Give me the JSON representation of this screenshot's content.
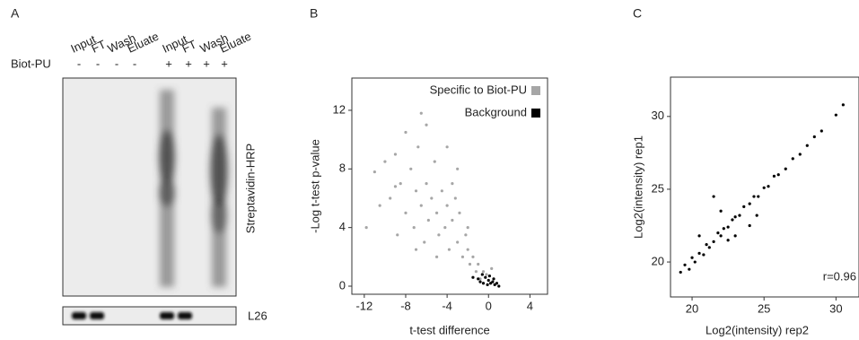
{
  "panel_a": {
    "label": "A",
    "lanes": [
      "Input",
      "FT",
      "Wash",
      "Eluate",
      "Input",
      "FT",
      "Wash",
      "Eluate"
    ],
    "row_label": "Biot-PU",
    "signs": [
      "-",
      "-",
      "-",
      "-",
      "+",
      "+",
      "+",
      "+"
    ],
    "blot_label": "Streptavidin-HRP",
    "loading_label": "L26"
  },
  "chart_data": [
    {
      "type": "scatter",
      "label": "B",
      "x_label": "t-test difference",
      "y_label": "-Log t-test p-value",
      "xlim": [
        -13.2,
        5.7
      ],
      "xticks": [
        -12,
        -8,
        -4,
        0,
        4
      ],
      "ylim": [
        -0.55,
        14.2
      ],
      "yticks": [
        0,
        4,
        8,
        12
      ],
      "legend": "top-right",
      "series": [
        {
          "name": "Specific to Biot-PU",
          "color": "#a6a6a6",
          "x": [
            -11.8,
            -11,
            -10.5,
            -10,
            -9.5,
            -9,
            -8.8,
            -8.5,
            -8,
            -8,
            -7.5,
            -7.2,
            -7,
            -6.8,
            -6.5,
            -6.2,
            -6,
            -5.8,
            -5.5,
            -5.2,
            -5,
            -4.8,
            -4.5,
            -4.2,
            -4,
            -3.8,
            -3.5,
            -3.2,
            -3,
            -2.8,
            -2.5,
            -2.2,
            -2,
            -1.8,
            -1.5,
            -1.2,
            -1,
            -0.8,
            -0.5,
            -0.2,
            0.3,
            -6,
            -4,
            -3,
            -7,
            -5,
            -2,
            -9,
            -6.5,
            -3.5
          ],
          "values": [
            4,
            7.8,
            5.5,
            8.5,
            6,
            9,
            3.5,
            7,
            10.5,
            5,
            8,
            4,
            6.5,
            9.5,
            5.5,
            3,
            7,
            4.5,
            6,
            8.5,
            5,
            3.5,
            6.5,
            4,
            5.5,
            2.5,
            4.5,
            6,
            3,
            5,
            2,
            3.5,
            2.5,
            1.5,
            2,
            1,
            1.5,
            0.5,
            1,
            0.8,
            1.2,
            11,
            9.5,
            8,
            2.5,
            2,
            4,
            6.8,
            11.8,
            7
          ]
        },
        {
          "name": "Background",
          "color": "#000000",
          "x": [
            -1.5,
            -1,
            -0.8,
            -0.5,
            -0.3,
            -0.1,
            0,
            0.2,
            0.4,
            0.6,
            0.8,
            1,
            -0.6,
            0.1,
            0.5
          ],
          "values": [
            0.6,
            0.5,
            0.3,
            0.2,
            0.6,
            0.1,
            0.4,
            0.2,
            0.3,
            0.1,
            0.2,
            0.0,
            0.8,
            0.7,
            0.5
          ]
        }
      ]
    },
    {
      "type": "scatter",
      "label": "C",
      "x_label": "Log2(intensity) rep2",
      "y_label": "Log2(intensity) rep1",
      "xlim": [
        18.5,
        31.6
      ],
      "xticks": [
        20,
        25,
        30
      ],
      "ylim": [
        17.6,
        32.7
      ],
      "yticks": [
        20,
        25,
        30
      ],
      "annotation": "r=0.96",
      "color": "#000000",
      "x": [
        19.2,
        19.5,
        19.8,
        20,
        20.2,
        20.5,
        20.8,
        21,
        21.2,
        21.5,
        21.8,
        22,
        22.2,
        22.5,
        22.8,
        23,
        23.3,
        23.6,
        24,
        24.3,
        24.6,
        25,
        25.3,
        25.7,
        26,
        26.5,
        27,
        27.5,
        28,
        28.5,
        29,
        30,
        30.5,
        21.5,
        22,
        23,
        24,
        20.5,
        22.5,
        24.5
      ],
      "values": [
        19.3,
        19.8,
        19.5,
        20.3,
        20,
        20.6,
        20.5,
        21.2,
        21,
        21.4,
        22,
        21.8,
        22.3,
        22.4,
        22.9,
        23.1,
        23.2,
        23.8,
        24,
        24.5,
        24.5,
        25.1,
        25.2,
        25.9,
        26,
        26.4,
        27.1,
        27.4,
        28,
        28.6,
        29,
        30.1,
        30.8,
        24.5,
        23.5,
        21.8,
        22.5,
        21.8,
        21.5,
        23.2
      ]
    }
  ]
}
